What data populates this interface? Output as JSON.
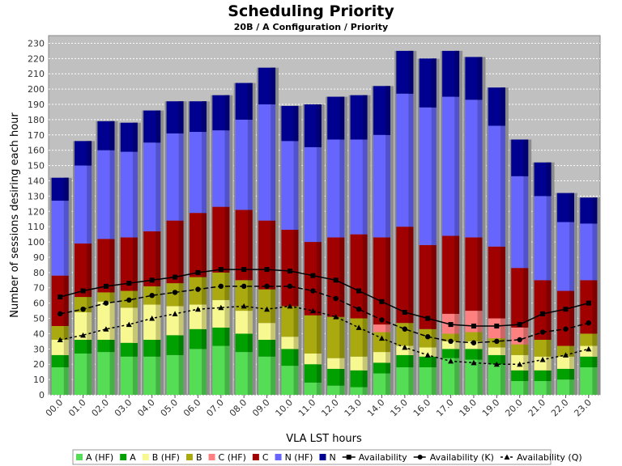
{
  "chart_data": {
    "type": "bar",
    "stacked": true,
    "title": "Scheduling Priority",
    "subtitle": "20B / A Configuration /  Priority",
    "xlabel": "VLA LST hours",
    "ylabel": "Number of sessions desiring each hour",
    "ylim": [
      0,
      235
    ],
    "yticks": [
      0,
      10,
      20,
      30,
      40,
      50,
      60,
      70,
      80,
      90,
      100,
      110,
      120,
      130,
      140,
      150,
      160,
      170,
      180,
      190,
      200,
      210,
      220,
      230
    ],
    "grid": true,
    "legend_position": "bottom",
    "categories": [
      "00.0",
      "01.0",
      "02.0",
      "03.0",
      "04.0",
      "05.0",
      "06.0",
      "07.0",
      "08.0",
      "09.0",
      "10.0",
      "11.0",
      "12.0",
      "13.0",
      "14.0",
      "15.0",
      "16.0",
      "17.0",
      "18.0",
      "19.0",
      "20.0",
      "21.0",
      "22.0",
      "23.0"
    ],
    "series": [
      {
        "name": "A (HF)",
        "kind": "bar",
        "color": "#55dd55",
        "values": [
          18,
          27,
          28,
          25,
          25,
          26,
          30,
          32,
          28,
          25,
          19,
          8,
          6,
          5,
          14,
          18,
          18,
          24,
          23,
          20,
          9,
          9,
          10,
          18
        ]
      },
      {
        "name": "A",
        "kind": "bar",
        "color": "#00a000",
        "values": [
          8,
          9,
          8,
          9,
          11,
          13,
          13,
          12,
          12,
          11,
          11,
          12,
          11,
          11,
          7,
          8,
          7,
          6,
          7,
          6,
          7,
          7,
          7,
          7
        ]
      },
      {
        "name": "B (HF)",
        "kind": "bar",
        "color": "#f8f890",
        "values": [
          10,
          18,
          25,
          23,
          23,
          19,
          16,
          18,
          15,
          11,
          8,
          7,
          7,
          9,
          7,
          6,
          6,
          5,
          5,
          5,
          10,
          9,
          8,
          7
        ]
      },
      {
        "name": "B",
        "kind": "bar",
        "color": "#aaaa10",
        "values": [
          9,
          10,
          6,
          11,
          12,
          15,
          18,
          18,
          20,
          22,
          20,
          25,
          27,
          25,
          13,
          15,
          12,
          5,
          6,
          6,
          7,
          11,
          7,
          8
        ]
      },
      {
        "name": "C (HF)",
        "kind": "bar",
        "color": "#ff8080",
        "values": [
          0,
          0,
          0,
          0,
          0,
          0,
          0,
          0,
          0,
          0,
          0,
          0,
          0,
          0,
          5,
          0,
          0,
          13,
          14,
          13,
          11,
          0,
          0,
          0
        ]
      },
      {
        "name": "C",
        "kind": "bar",
        "color": "#a00000",
        "values": [
          33,
          35,
          35,
          35,
          36,
          41,
          42,
          43,
          46,
          45,
          50,
          48,
          52,
          55,
          57,
          63,
          55,
          51,
          48,
          47,
          39,
          39,
          36,
          35
        ]
      },
      {
        "name": "N (HF)",
        "kind": "bar",
        "color": "#6666ff",
        "values": [
          49,
          51,
          58,
          56,
          58,
          57,
          53,
          50,
          59,
          76,
          58,
          62,
          64,
          62,
          67,
          87,
          90,
          91,
          90,
          79,
          60,
          55,
          45,
          37
        ]
      },
      {
        "name": "N",
        "kind": "bar",
        "color": "#000090",
        "values": [
          15,
          16,
          19,
          19,
          21,
          21,
          20,
          23,
          24,
          24,
          23,
          28,
          28,
          29,
          32,
          28,
          32,
          30,
          28,
          25,
          24,
          22,
          19,
          17
        ]
      },
      {
        "name": "Availability",
        "kind": "line",
        "color": "#000000",
        "marker": "square",
        "dash": "solid",
        "values": [
          64,
          68,
          71,
          73,
          75,
          77,
          80,
          82,
          82,
          82,
          81,
          78,
          75,
          68,
          61,
          54,
          50,
          46,
          45,
          45,
          46,
          53,
          56,
          60
        ]
      },
      {
        "name": "Availability (K)",
        "kind": "line",
        "color": "#000000",
        "marker": "circle",
        "dash": "long",
        "values": [
          53,
          56,
          60,
          62,
          65,
          67,
          69,
          71,
          71,
          71,
          71,
          68,
          63,
          56,
          49,
          43,
          38,
          35,
          34,
          35,
          36,
          41,
          43,
          47
        ]
      },
      {
        "name": "Availability (Q)",
        "kind": "line",
        "color": "#000000",
        "marker": "triangle",
        "dash": "short",
        "values": [
          36,
          39,
          43,
          46,
          50,
          53,
          56,
          57,
          58,
          56,
          58,
          55,
          51,
          44,
          37,
          31,
          26,
          22,
          21,
          20,
          20,
          23,
          26,
          30
        ]
      }
    ]
  }
}
